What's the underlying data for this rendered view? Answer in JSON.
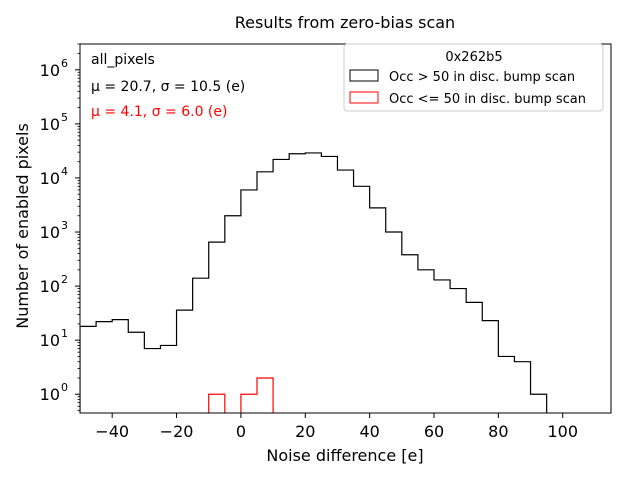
{
  "chart_data": {
    "type": "histogram",
    "title": "Results from zero-bias scan",
    "xlabel": "Noise difference [e]",
    "ylabel": "Number of enabled pixels",
    "yscale": "log",
    "xlim": [
      -50,
      115
    ],
    "ylim": [
      0.45,
      3000000
    ],
    "bin_width": 5,
    "x_ticks": [
      {
        "value": -40,
        "label": "−40"
      },
      {
        "value": -20,
        "label": "−20"
      },
      {
        "value": 0,
        "label": "0"
      },
      {
        "value": 20,
        "label": "20"
      },
      {
        "value": 40,
        "label": "40"
      },
      {
        "value": 60,
        "label": "60"
      },
      {
        "value": 80,
        "label": "80"
      },
      {
        "value": 100,
        "label": "100"
      }
    ],
    "y_ticks": [
      {
        "value": 1,
        "base": "10",
        "exp": "0"
      },
      {
        "value": 10,
        "base": "10",
        "exp": "1"
      },
      {
        "value": 100,
        "base": "10",
        "exp": "2"
      },
      {
        "value": 1000,
        "base": "10",
        "exp": "3"
      },
      {
        "value": 10000,
        "base": "10",
        "exp": "4"
      },
      {
        "value": 100000,
        "base": "10",
        "exp": "5"
      },
      {
        "value": 1000000,
        "base": "10",
        "exp": "6"
      }
    ],
    "series": [
      {
        "name": "Occ > 50 in disc. bump scan",
        "color": "#000000",
        "bin_edges": [
          -50,
          -45,
          -40,
          -35,
          -30,
          -25,
          -20,
          -15,
          -10,
          -5,
          0,
          5,
          10,
          15,
          20,
          25,
          30,
          35,
          40,
          45,
          50,
          55,
          60,
          65,
          70,
          75,
          80,
          85,
          90,
          95
        ],
        "counts": [
          18,
          22,
          24,
          14,
          7,
          8,
          36,
          140,
          650,
          2000,
          6000,
          13000,
          22000,
          28000,
          29000,
          25000,
          14000,
          7000,
          2800,
          1000,
          380,
          200,
          130,
          90,
          50,
          23,
          5,
          4,
          1
        ]
      },
      {
        "name": "Occ <= 50 in disc. bump scan",
        "color": "#ff0000",
        "bin_edges": [
          -10,
          -5,
          0,
          5,
          10
        ],
        "counts": [
          1,
          0,
          1,
          2
        ]
      }
    ],
    "annotations": {
      "label": "all_pixels",
      "stats_black": "μ = 20.7, σ = 10.5 (e)",
      "stats_red": "μ = 4.1, σ = 6.0 (e)"
    },
    "legend": {
      "title": "0x262b5",
      "position": "top-right"
    }
  }
}
